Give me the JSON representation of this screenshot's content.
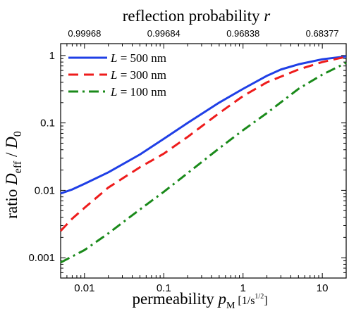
{
  "chart_data": {
    "type": "line",
    "x_scale": "log",
    "y_scale": "log",
    "xlim": [
      0.005,
      20
    ],
    "ylim": [
      0.0005,
      1.5
    ],
    "xlabel": {
      "text": "permeability",
      "symbol": "p",
      "subscript": "M",
      "unit": "[1/s",
      "unit_exp": "1/2",
      "unit_end": "]"
    },
    "ylabel": {
      "prefix": "ratio",
      "symbol1": "D",
      "sub1": "eff",
      "slash": " / ",
      "symbol2": "D",
      "sub2": "0"
    },
    "top_axis_label": {
      "text": "reflection probability",
      "symbol": "r"
    },
    "x_ticks": [
      {
        "value": 0.01,
        "label": "0.01"
      },
      {
        "value": 0.1,
        "label": "0.1"
      },
      {
        "value": 1,
        "label": "1"
      },
      {
        "value": 10,
        "label": "10"
      }
    ],
    "y_ticks": [
      {
        "value": 0.001,
        "label": "0.001"
      },
      {
        "value": 0.01,
        "label": "0.01"
      },
      {
        "value": 0.1,
        "label": "0.1"
      },
      {
        "value": 1,
        "label": "1"
      }
    ],
    "top_ticks": [
      {
        "value": 0.01,
        "label": "0.99968"
      },
      {
        "value": 0.1,
        "label": "0.99684"
      },
      {
        "value": 1,
        "label": "0.96838"
      },
      {
        "value": 10,
        "label": "0.68377"
      }
    ],
    "legend_position": "top-left",
    "series": [
      {
        "name": "L = 500 nm",
        "symbol": "L",
        "value_text": " = 500 nm",
        "color": "#1f3fe6",
        "dash": "solid",
        "x": [
          0.005,
          0.007,
          0.01,
          0.02,
          0.05,
          0.1,
          0.2,
          0.5,
          1,
          2,
          3,
          5,
          10,
          20
        ],
        "y": [
          0.009,
          0.0103,
          0.0125,
          0.0185,
          0.034,
          0.058,
          0.1,
          0.2,
          0.32,
          0.5,
          0.62,
          0.74,
          0.88,
          0.97
        ]
      },
      {
        "name": "L = 300 nm",
        "symbol": "L",
        "value_text": " = 300 nm",
        "color": "#ee1c1c",
        "dash": "dashed",
        "x": [
          0.005,
          0.007,
          0.01,
          0.02,
          0.05,
          0.1,
          0.2,
          0.5,
          1,
          2,
          5,
          10,
          20
        ],
        "y": [
          0.0025,
          0.0038,
          0.0055,
          0.011,
          0.022,
          0.035,
          0.062,
          0.14,
          0.25,
          0.4,
          0.62,
          0.8,
          0.96
        ]
      },
      {
        "name": "L = 100 nm",
        "symbol": "L",
        "value_text": " = 100 nm",
        "color": "#1a8a1a",
        "dash": "dashdot",
        "x": [
          0.005,
          0.01,
          0.02,
          0.05,
          0.1,
          0.2,
          0.5,
          1,
          2,
          5,
          10,
          20
        ],
        "y": [
          0.00085,
          0.0013,
          0.0023,
          0.0052,
          0.0095,
          0.018,
          0.042,
          0.078,
          0.14,
          0.32,
          0.52,
          0.78
        ]
      }
    ]
  }
}
